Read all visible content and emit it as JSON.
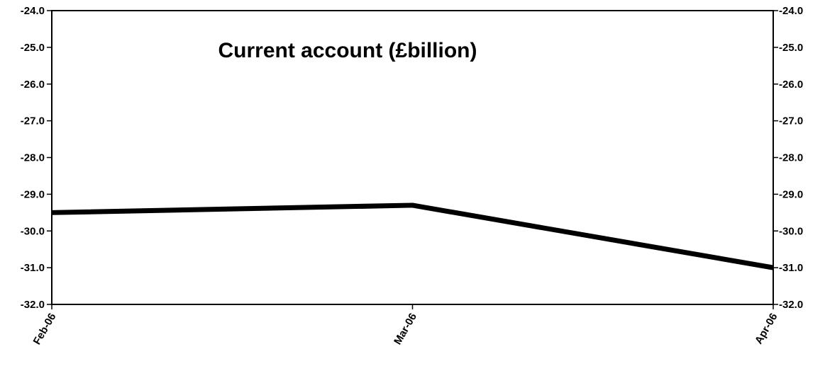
{
  "chart_data": {
    "type": "line",
    "title": "Current account (£billion)",
    "xlabel": "",
    "ylabel": "",
    "categories": [
      "Feb-06",
      "Mar-06",
      "Apr-06"
    ],
    "series": [
      {
        "values": [
          -29.5,
          -29.3,
          -31.0
        ],
        "color": "#000000"
      }
    ],
    "ylim": [
      -32.0,
      -24.0
    ],
    "y_ticks": [
      "-24.0",
      "-25.0",
      "-26.0",
      "-27.0",
      "-28.0",
      "-29.0",
      "-30.0",
      "-31.0",
      "-32.0"
    ],
    "y_axis_both_sides": true,
    "grid": false,
    "legend": "none"
  }
}
